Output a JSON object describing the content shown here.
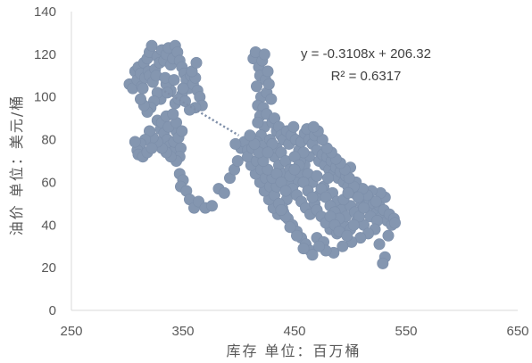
{
  "chart_data": {
    "type": "scatter",
    "xlabel": "库存 单位：百万桶",
    "ylabel": "油价 单位：美元/桶",
    "xlim": [
      250,
      650
    ],
    "ylim": [
      0,
      140
    ],
    "xticks": [
      "250",
      "350",
      "450",
      "550",
      "650"
    ],
    "yticks": [
      "0",
      "20",
      "40",
      "60",
      "80",
      "100",
      "120",
      "140"
    ],
    "grid": false,
    "point_color": "#8496B0",
    "axis_color": "#D9D9D9",
    "trendline": {
      "type": "linear",
      "slope": -0.3108,
      "intercept": 206.32,
      "x_range": [
        330,
        400
      ],
      "color": "#7F8FA9",
      "equation": "y = -0.3108x + 206.32",
      "r_squared": "R² = 0.6317"
    },
    "points": [
      [
        302,
        106
      ],
      [
        305,
        104
      ],
      [
        307,
        112
      ],
      [
        309,
        108
      ],
      [
        310,
        114
      ],
      [
        312,
        111
      ],
      [
        313,
        105
      ],
      [
        315,
        116
      ],
      [
        316,
        109
      ],
      [
        318,
        118
      ],
      [
        319,
        112
      ],
      [
        320,
        121
      ],
      [
        322,
        124
      ],
      [
        320,
        110
      ],
      [
        323,
        107
      ],
      [
        325,
        113
      ],
      [
        327,
        119
      ],
      [
        329,
        116
      ],
      [
        331,
        122
      ],
      [
        333,
        117
      ],
      [
        335,
        120
      ],
      [
        337,
        123
      ],
      [
        339,
        115
      ],
      [
        341,
        118
      ],
      [
        343,
        124
      ],
      [
        345,
        121
      ],
      [
        347,
        117
      ],
      [
        349,
        114
      ],
      [
        351,
        111
      ],
      [
        353,
        108
      ],
      [
        355,
        104
      ],
      [
        357,
        110
      ],
      [
        359,
        106
      ],
      [
        361,
        109
      ],
      [
        363,
        103
      ],
      [
        365,
        100
      ],
      [
        367,
        96
      ],
      [
        361,
        95
      ],
      [
        356,
        94
      ],
      [
        349,
        101
      ],
      [
        343,
        97
      ],
      [
        339,
        103
      ],
      [
        335,
        106
      ],
      [
        330,
        99
      ],
      [
        327,
        102
      ],
      [
        324,
        98
      ],
      [
        321,
        95
      ],
      [
        318,
        93
      ],
      [
        315,
        96
      ],
      [
        312,
        99
      ],
      [
        314,
        104
      ],
      [
        326,
        110
      ],
      [
        334,
        109
      ],
      [
        342,
        108
      ],
      [
        350,
        104
      ],
      [
        358,
        112
      ],
      [
        362,
        116
      ],
      [
        336,
        102
      ],
      [
        346,
        99
      ],
      [
        352,
        98
      ],
      [
        327,
        89
      ],
      [
        330,
        85
      ],
      [
        333,
        83
      ],
      [
        336,
        80
      ],
      [
        338,
        77
      ],
      [
        340,
        74
      ],
      [
        342,
        79
      ],
      [
        344,
        84
      ],
      [
        346,
        81
      ],
      [
        348,
        76
      ],
      [
        347,
        72
      ],
      [
        344,
        70
      ],
      [
        339,
        72
      ],
      [
        335,
        74
      ],
      [
        331,
        76
      ],
      [
        327,
        79
      ],
      [
        323,
        81
      ],
      [
        320,
        84
      ],
      [
        316,
        80
      ],
      [
        312,
        78
      ],
      [
        309,
        75
      ],
      [
        307,
        79
      ],
      [
        310,
        73
      ],
      [
        314,
        72
      ],
      [
        318,
        74
      ],
      [
        322,
        76
      ],
      [
        331,
        88
      ],
      [
        337,
        86
      ],
      [
        344,
        88
      ],
      [
        349,
        84
      ],
      [
        335,
        91
      ],
      [
        341,
        92
      ],
      [
        347,
        64
      ],
      [
        350,
        61
      ],
      [
        348,
        58
      ],
      [
        353,
        56
      ],
      [
        356,
        52
      ],
      [
        360,
        48
      ],
      [
        364,
        51
      ],
      [
        370,
        48
      ],
      [
        376,
        49
      ],
      [
        382,
        57
      ],
      [
        387,
        55
      ],
      [
        392,
        62
      ],
      [
        396,
        66
      ],
      [
        399,
        70
      ],
      [
        402,
        76
      ],
      [
        405,
        79
      ],
      [
        408,
        75
      ],
      [
        397,
        78
      ],
      [
        413,
        118
      ],
      [
        415,
        121
      ],
      [
        418,
        114
      ],
      [
        421,
        117
      ],
      [
        423,
        120
      ],
      [
        419,
        110
      ],
      [
        416,
        105
      ],
      [
        424,
        108
      ],
      [
        420,
        100
      ],
      [
        417,
        96
      ],
      [
        425,
        102
      ],
      [
        426,
        112
      ],
      [
        422,
        95
      ],
      [
        419,
        91
      ],
      [
        427,
        106
      ],
      [
        423,
        86
      ],
      [
        420,
        82
      ],
      [
        417,
        88
      ],
      [
        416,
        79
      ],
      [
        421,
        77
      ],
      [
        425,
        92
      ],
      [
        429,
        99
      ],
      [
        430,
        88
      ],
      [
        428,
        80
      ],
      [
        432,
        90
      ],
      [
        434,
        84
      ],
      [
        436,
        86
      ],
      [
        438,
        82
      ],
      [
        440,
        80
      ],
      [
        443,
        84
      ],
      [
        445,
        78
      ],
      [
        447,
        82
      ],
      [
        449,
        86
      ],
      [
        451,
        80
      ],
      [
        454,
        75
      ],
      [
        456,
        79
      ],
      [
        459,
        83
      ],
      [
        461,
        85
      ],
      [
        463,
        80
      ],
      [
        466,
        78
      ],
      [
        468,
        82
      ],
      [
        470,
        75
      ],
      [
        472,
        70
      ],
      [
        475,
        73
      ],
      [
        477,
        68
      ],
      [
        479,
        72
      ],
      [
        481,
        66
      ],
      [
        483,
        70
      ],
      [
        485,
        64
      ],
      [
        487,
        67
      ],
      [
        489,
        62
      ],
      [
        491,
        65
      ],
      [
        494,
        60
      ],
      [
        496,
        63
      ],
      [
        498,
        58
      ],
      [
        500,
        67
      ],
      [
        503,
        55
      ],
      [
        505,
        60
      ],
      [
        508,
        54
      ],
      [
        510,
        50
      ],
      [
        512,
        53
      ],
      [
        514,
        49
      ],
      [
        517,
        52
      ],
      [
        519,
        47
      ],
      [
        521,
        50
      ],
      [
        524,
        46
      ],
      [
        526,
        49
      ],
      [
        528,
        44
      ],
      [
        530,
        47
      ],
      [
        533,
        42
      ],
      [
        535,
        45
      ],
      [
        537,
        40
      ],
      [
        539,
        43
      ],
      [
        531,
        53
      ],
      [
        527,
        55
      ],
      [
        523,
        51
      ],
      [
        519,
        56
      ],
      [
        515,
        54
      ],
      [
        511,
        57
      ],
      [
        507,
        53
      ],
      [
        503,
        58
      ],
      [
        499,
        62
      ],
      [
        495,
        66
      ],
      [
        491,
        69
      ],
      [
        487,
        71
      ],
      [
        483,
        74
      ],
      [
        479,
        76
      ],
      [
        475,
        80
      ],
      [
        471,
        84
      ],
      [
        467,
        86
      ],
      [
        463,
        72
      ],
      [
        459,
        68
      ],
      [
        455,
        64
      ],
      [
        451,
        60
      ],
      [
        447,
        56
      ],
      [
        443,
        52
      ],
      [
        439,
        48
      ],
      [
        435,
        45
      ],
      [
        431,
        48
      ],
      [
        427,
        52
      ],
      [
        423,
        56
      ],
      [
        419,
        60
      ],
      [
        415,
        64
      ],
      [
        411,
        68
      ],
      [
        408,
        72
      ],
      [
        412,
        76
      ],
      [
        416,
        70
      ],
      [
        420,
        66
      ],
      [
        424,
        62
      ],
      [
        428,
        58
      ],
      [
        432,
        54
      ],
      [
        436,
        50
      ],
      [
        440,
        46
      ],
      [
        444,
        43
      ],
      [
        448,
        40
      ],
      [
        452,
        37
      ],
      [
        456,
        34
      ],
      [
        460,
        31
      ],
      [
        464,
        28
      ],
      [
        470,
        34
      ],
      [
        476,
        32
      ],
      [
        482,
        38
      ],
      [
        488,
        36
      ],
      [
        494,
        40
      ],
      [
        500,
        38
      ],
      [
        506,
        42
      ],
      [
        512,
        40
      ],
      [
        518,
        44
      ],
      [
        524,
        42
      ],
      [
        531,
        25
      ],
      [
        529,
        22
      ],
      [
        526,
        31
      ],
      [
        534,
        35
      ],
      [
        522,
        38
      ],
      [
        516,
        36
      ],
      [
        509,
        34
      ],
      [
        501,
        32
      ],
      [
        493,
        30
      ],
      [
        485,
        27
      ],
      [
        478,
        28
      ],
      [
        472,
        30
      ],
      [
        466,
        26
      ],
      [
        458,
        29
      ],
      [
        452,
        35
      ],
      [
        446,
        39
      ],
      [
        442,
        44
      ],
      [
        438,
        47
      ],
      [
        434,
        58
      ],
      [
        430,
        62
      ],
      [
        426,
        66
      ],
      [
        422,
        70
      ],
      [
        418,
        74
      ],
      [
        414,
        78
      ],
      [
        410,
        82
      ],
      [
        432,
        72
      ],
      [
        436,
        68
      ],
      [
        440,
        64
      ],
      [
        444,
        60
      ],
      [
        448,
        57
      ],
      [
        452,
        54
      ],
      [
        456,
        51
      ],
      [
        460,
        48
      ],
      [
        464,
        45
      ],
      [
        468,
        50
      ],
      [
        472,
        54
      ],
      [
        476,
        58
      ],
      [
        480,
        62
      ],
      [
        484,
        55
      ],
      [
        488,
        51
      ],
      [
        492,
        47
      ],
      [
        496,
        44
      ],
      [
        500,
        49
      ],
      [
        504,
        46
      ],
      [
        508,
        44
      ],
      [
        512,
        48
      ],
      [
        455,
        70
      ],
      [
        458,
        74
      ],
      [
        462,
        64
      ],
      [
        466,
        60
      ],
      [
        470,
        63
      ],
      [
        474,
        57
      ],
      [
        478,
        53
      ],
      [
        482,
        49
      ],
      [
        486,
        46
      ],
      [
        490,
        43
      ],
      [
        494,
        52
      ],
      [
        498,
        55
      ],
      [
        434,
        76
      ],
      [
        438,
        74
      ],
      [
        442,
        70
      ],
      [
        446,
        66
      ],
      [
        450,
        72
      ],
      [
        454,
        68
      ],
      [
        430,
        78
      ],
      [
        426,
        74
      ],
      [
        434,
        64
      ],
      [
        438,
        60
      ],
      [
        442,
        56
      ],
      [
        446,
        63
      ],
      [
        450,
        66
      ],
      [
        458,
        60
      ],
      [
        462,
        56
      ],
      [
        466,
        53
      ],
      [
        470,
        47
      ],
      [
        474,
        44
      ],
      [
        478,
        41
      ],
      [
        482,
        44
      ],
      [
        486,
        40
      ],
      [
        490,
        37
      ],
      [
        497,
        35
      ],
      [
        503,
        40
      ],
      [
        540,
        41
      ]
    ]
  }
}
